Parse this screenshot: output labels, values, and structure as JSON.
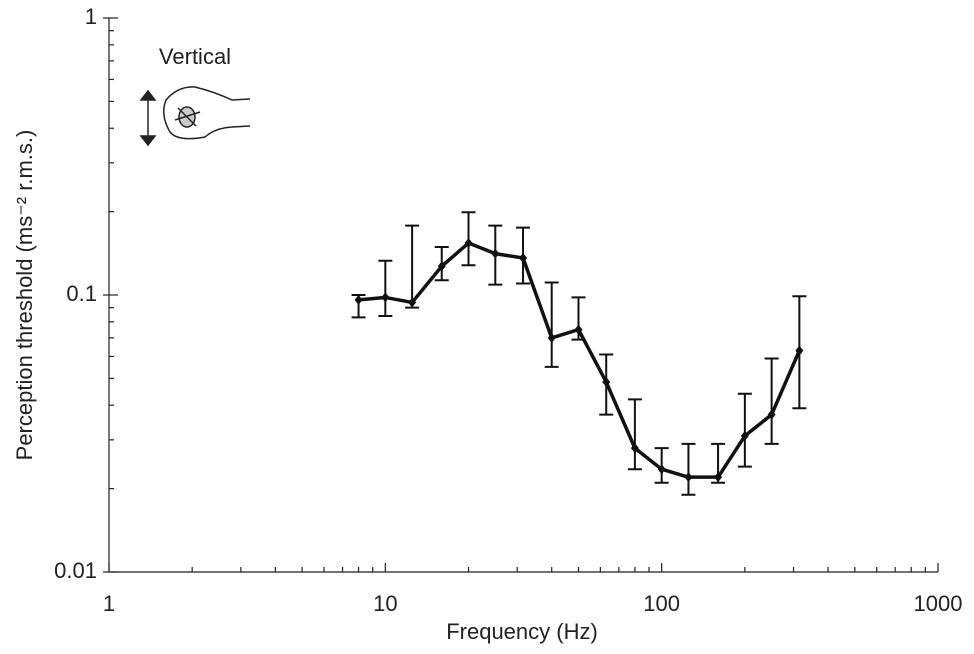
{
  "chart_data": {
    "type": "line",
    "x_label": "Frequency (Hz)",
    "y_label": "Perception threshold (ms⁻² r.m.s.)",
    "annotation": "Vertical",
    "x_log": true,
    "y_log": true,
    "xlim": [
      1,
      1000
    ],
    "ylim": [
      0.01,
      1
    ],
    "xticks": [
      1,
      10,
      100,
      1000
    ],
    "yticks": [
      0.01,
      0.1,
      1
    ],
    "series": [
      {
        "color": "#111111",
        "x": [
          8,
          10,
          12.5,
          16,
          20,
          25,
          31.5,
          40,
          50,
          63,
          80,
          100,
          125,
          160,
          200,
          250,
          315
        ],
        "values": [
          0.096,
          0.098,
          0.094,
          0.127,
          0.154,
          0.141,
          0.136,
          0.07,
          0.075,
          0.0485,
          0.028,
          0.0235,
          0.022,
          0.022,
          0.031,
          0.037,
          0.063
        ],
        "upper": [
          0.1,
          0.133,
          0.178,
          0.149,
          0.199,
          0.178,
          0.175,
          0.111,
          0.098,
          0.061,
          0.042,
          0.028,
          0.029,
          0.029,
          0.044,
          0.059,
          0.099
        ],
        "lower": [
          0.083,
          0.084,
          0.09,
          0.113,
          0.128,
          0.109,
          0.11,
          0.055,
          0.069,
          0.037,
          0.0235,
          0.021,
          0.019,
          0.021,
          0.024,
          0.029,
          0.039
        ]
      }
    ]
  }
}
